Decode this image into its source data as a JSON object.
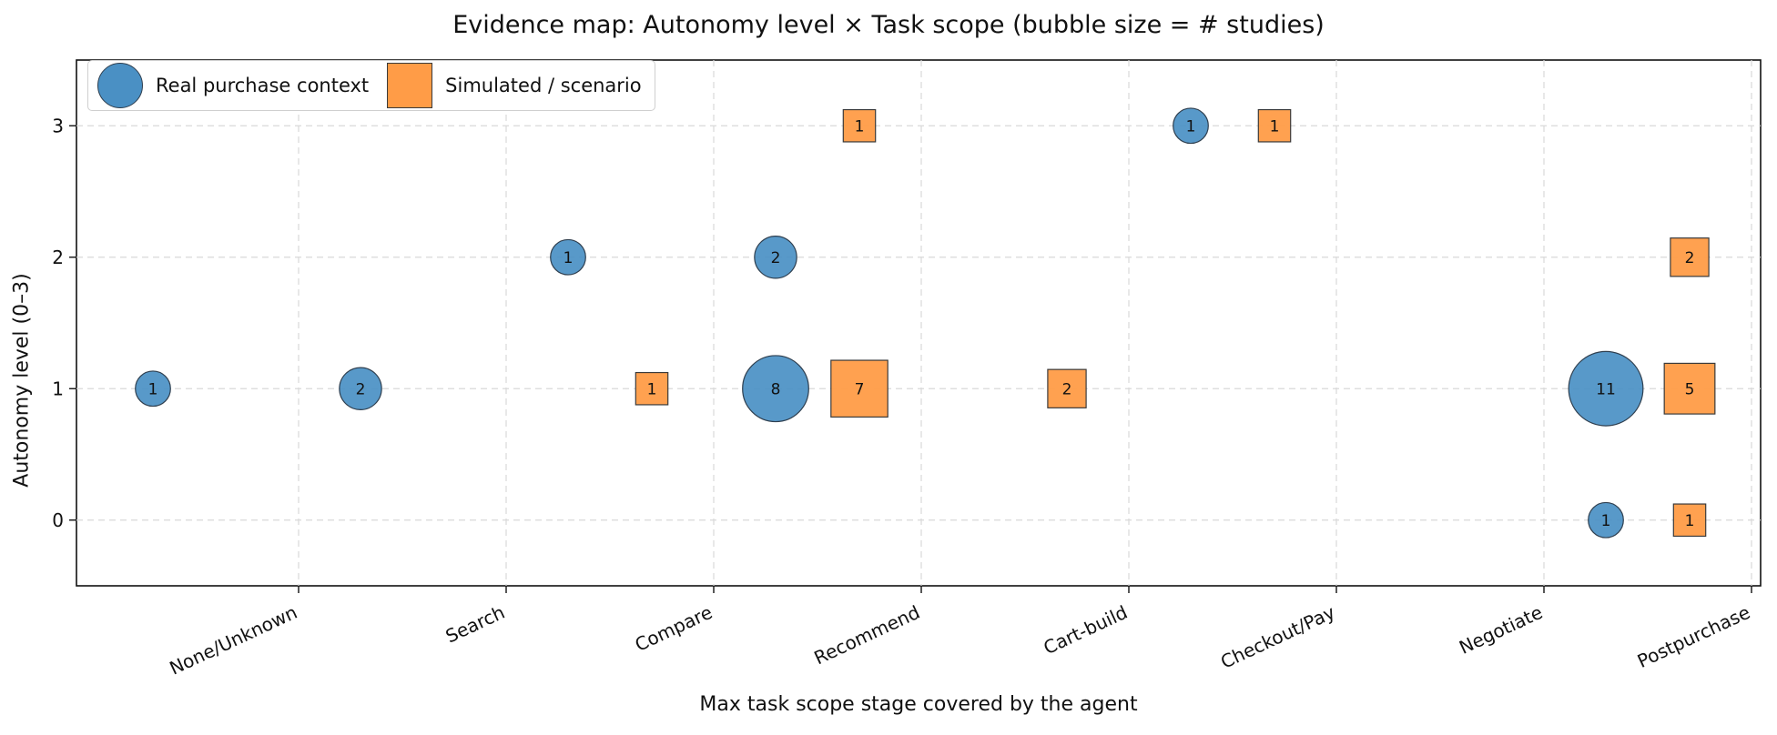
{
  "chart_data": {
    "type": "scatter",
    "title": "Evidence map: Autonomy level × Task scope (bubble size = # studies)",
    "xlabel": "Max task scope stage covered by the agent",
    "ylabel": "Autonomy level (0–3)",
    "categories": [
      "None/Unknown",
      "Search",
      "Compare",
      "Recommend",
      "Cart-build",
      "Checkout/Pay",
      "Negotiate",
      "Postpurchase"
    ],
    "yticks": [
      0,
      1,
      2,
      3
    ],
    "ylim": [
      -0.5,
      3.5
    ],
    "grid": true,
    "legend_position": "top-left",
    "series": [
      {
        "name": "Real purchase context",
        "marker": "circle",
        "color": "#4a90c4",
        "points": [
          {
            "category": "None/Unknown",
            "y": 1,
            "count": 1
          },
          {
            "category": "Search",
            "y": 1,
            "count": 2
          },
          {
            "category": "Compare",
            "y": 2,
            "count": 1
          },
          {
            "category": "Recommend",
            "y": 2,
            "count": 2
          },
          {
            "category": "Recommend",
            "y": 1,
            "count": 8
          },
          {
            "category": "Checkout/Pay",
            "y": 3,
            "count": 1
          },
          {
            "category": "Postpurchase",
            "y": 1,
            "count": 11
          },
          {
            "category": "Postpurchase",
            "y": 0,
            "count": 1
          }
        ]
      },
      {
        "name": "Simulated / scenario",
        "marker": "square",
        "color": "#ff9c47",
        "points": [
          {
            "category": "Compare",
            "y": 1,
            "count": 1
          },
          {
            "category": "Recommend",
            "y": 3,
            "count": 1
          },
          {
            "category": "Recommend",
            "y": 1,
            "count": 7
          },
          {
            "category": "Cart-build",
            "y": 1,
            "count": 2
          },
          {
            "category": "Checkout/Pay",
            "y": 3,
            "count": 1
          },
          {
            "category": "Postpurchase",
            "y": 2,
            "count": 2
          },
          {
            "category": "Postpurchase",
            "y": 1,
            "count": 5
          },
          {
            "category": "Postpurchase",
            "y": 0,
            "count": 1
          }
        ]
      }
    ]
  }
}
